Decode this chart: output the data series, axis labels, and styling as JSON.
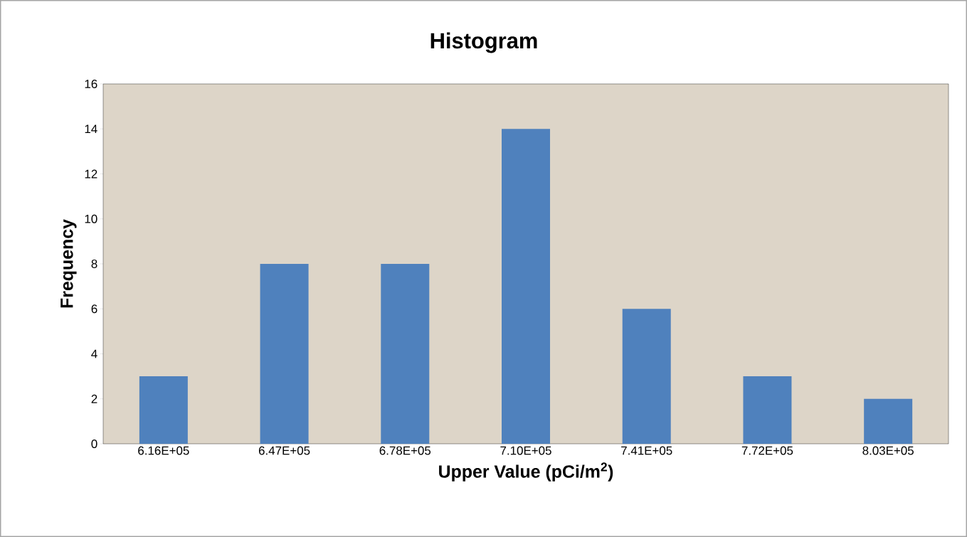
{
  "chart_data": {
    "type": "bar",
    "title": "Histogram",
    "xlabel": "Upper Value (pCi/m$^{2}$)",
    "ylabel": "Frequency",
    "categories": [
      "6.16E+05",
      "6.47E+05",
      "6.78E+05",
      "7.10E+05",
      "7.41E+05",
      "7.72E+05",
      "8.03E+05"
    ],
    "values": [
      3,
      8,
      8,
      14,
      6,
      3,
      2
    ],
    "color": "#4f81bd",
    "ylim": [
      0,
      16
    ],
    "yticks": [
      0,
      2,
      4,
      6,
      8,
      10,
      12,
      14,
      16
    ],
    "grid": false
  }
}
